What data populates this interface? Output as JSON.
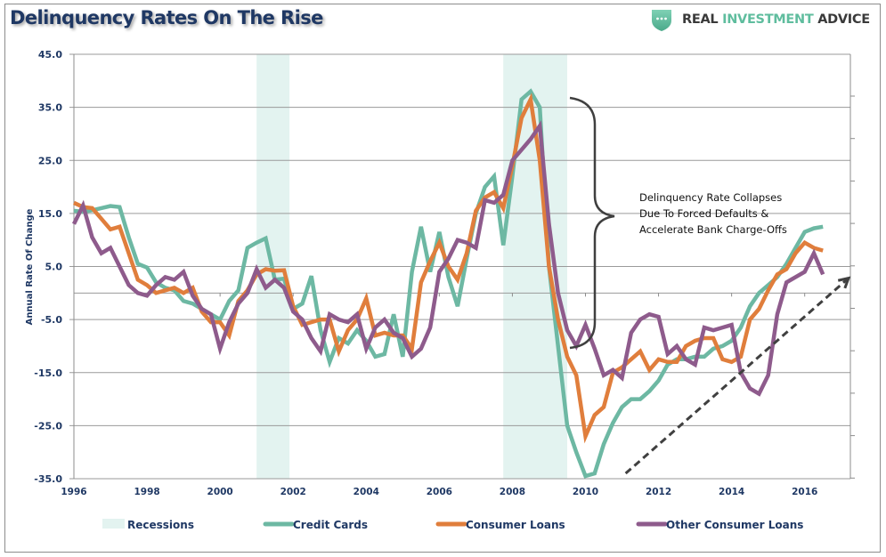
{
  "header": {
    "title": "Delinquency Rates On The Rise",
    "brand": {
      "word1": "REAL",
      "word2": "INVESTMENT",
      "word3": "ADVICE",
      "icon": "shield-dots-icon"
    }
  },
  "colors": {
    "credit_cards": "#6db8a3",
    "consumer_loans": "#e07e3c",
    "other_consumer_loans": "#8e5b8c",
    "recessions": "#e3f3f0",
    "title": "#1f3864",
    "annotation": "#3f3f3f"
  },
  "annotation": {
    "lines": [
      "Delinquency Rate Collapses",
      "Due To Forced Defaults &",
      "Accelerate Bank Charge-Offs"
    ]
  },
  "chart_data": {
    "type": "line",
    "title": "Delinquency Rates On The Rise",
    "xlabel": "",
    "ylabel": "Annual Rate  Of Change",
    "ylim": [
      -35,
      45
    ],
    "xlim": [
      1996,
      2017.25
    ],
    "yticks": [
      -35.0,
      -25.0,
      -15.0,
      -5.0,
      5.0,
      15.0,
      25.0,
      35.0,
      45.0
    ],
    "ytick_labels": [
      "-35.0",
      "-25.0",
      "-15.0",
      "-5.0",
      "5.0",
      "15.0",
      "25.0",
      "35.0",
      "45.0"
    ],
    "xtick_labels": [
      "1996",
      "1998",
      "2000",
      "2002",
      "2004",
      "2006",
      "2008",
      "2010",
      "2012",
      "2014",
      "2016"
    ],
    "xticks": [
      1996,
      1998,
      2000,
      2002,
      2004,
      2006,
      2008,
      2010,
      2012,
      2014,
      2016
    ],
    "grid": "horizontal",
    "legend_position": "bottom",
    "recessions": [
      {
        "start": 2001.0,
        "end": 2001.9
      },
      {
        "start": 2007.75,
        "end": 2009.5
      }
    ],
    "x_start": 1996.0,
    "x_step": 0.25,
    "series": [
      {
        "name": "Credit Cards",
        "values": [
          15.5,
          15.3,
          15.6,
          16.0,
          16.4,
          16.2,
          10.5,
          5.5,
          4.8,
          2.0,
          1.0,
          0.5,
          -1.5,
          -2.0,
          -3.0,
          -4.0,
          -5.0,
          -1.5,
          0.5,
          8.5,
          9.5,
          10.3,
          2.5,
          2.7,
          -3.0,
          -2.0,
          3.2,
          -7.0,
          -13.0,
          -8.5,
          -9.5,
          -7.0,
          -9.0,
          -12.0,
          -11.5,
          -4.0,
          -12.0,
          4.0,
          12.5,
          4.0,
          11.5,
          3.0,
          -2.5,
          6.5,
          15.0,
          20.0,
          22.0,
          9.0,
          22.0,
          36.5,
          38.0,
          35.0,
          5.0,
          -10.0,
          -25.0,
          -30.0,
          -34.5,
          -34.0,
          -28.5,
          -24.5,
          -21.5,
          -20.0,
          -20.0,
          -18.5,
          -16.5,
          -13.5,
          -12.5,
          -12.5,
          -12.0,
          -12.0,
          -10.5,
          -10.0,
          -9.0,
          -6.5,
          -2.5,
          0.0,
          1.5,
          3.0,
          5.5,
          8.5,
          11.5,
          12.2,
          12.5
        ]
      },
      {
        "name": "Consumer Loans",
        "values": [
          17.0,
          16.2,
          16.0,
          14.0,
          12.0,
          12.5,
          7.5,
          2.5,
          1.5,
          0.0,
          0.5,
          1.0,
          0.0,
          1.0,
          -3.5,
          -5.5,
          -5.5,
          -8.0,
          -1.5,
          0.5,
          3.5,
          4.5,
          4.2,
          4.3,
          -2.5,
          -6.0,
          -5.5,
          -5.0,
          -5.0,
          -11.0,
          -7.0,
          -5.0,
          -1.0,
          -8.0,
          -7.5,
          -8.0,
          -8.0,
          -10.5,
          2.0,
          6.0,
          9.5,
          5.0,
          2.5,
          7.5,
          15.5,
          18.0,
          19.0,
          16.0,
          24.0,
          33.0,
          36.5,
          25.0,
          5.0,
          -5.0,
          -12.0,
          -15.5,
          -27.0,
          -23.0,
          -21.5,
          -15.0,
          -14.0,
          -12.5,
          -11.0,
          -14.5,
          -12.5,
          -13.0,
          -13.0,
          -10.0,
          -9.0,
          -8.5,
          -8.5,
          -12.5,
          -13.0,
          -12.0,
          -5.0,
          -3.0,
          0.5,
          3.5,
          4.5,
          7.5,
          9.5,
          8.5,
          8.0
        ]
      },
      {
        "name": "Other Consumer Loans",
        "values": [
          13.0,
          16.5,
          10.5,
          7.5,
          8.5,
          5.0,
          1.5,
          0.0,
          -0.5,
          1.5,
          3.0,
          2.5,
          4.0,
          -0.5,
          -3.0,
          -4.0,
          -10.5,
          -5.5,
          -2.0,
          0.0,
          4.5,
          1.0,
          2.5,
          1.0,
          -3.5,
          -5.0,
          -8.5,
          -11.0,
          -4.0,
          -5.0,
          -5.5,
          -4.0,
          -10.5,
          -6.5,
          -5.0,
          -7.5,
          -8.5,
          -12.0,
          -10.5,
          -6.5,
          4.0,
          6.5,
          10.0,
          9.5,
          8.5,
          17.5,
          17.0,
          18.5,
          25.0,
          27.0,
          29.0,
          31.5,
          13.0,
          0.0,
          -7.0,
          -10.0,
          -6.0,
          -10.5,
          -15.5,
          -14.5,
          -16.0,
          -7.5,
          -5.0,
          -4.0,
          -4.5,
          -11.5,
          -10.0,
          -12.5,
          -13.5,
          -6.5,
          -7.0,
          -6.5,
          -6.0,
          -15.0,
          -18.0,
          -19.0,
          -15.5,
          -4.0,
          2.0,
          3.0,
          4.0,
          7.5,
          3.5
        ]
      }
    ],
    "arrow": {
      "from": [
        2011.1,
        -34.0
      ],
      "to": [
        2017.2,
        2.8
      ],
      "style": "dashed"
    }
  },
  "legend": {
    "items": [
      {
        "label": "Recessions",
        "kind": "box",
        "color_key": "recessions"
      },
      {
        "label": "Credit Cards",
        "kind": "line",
        "color_key": "credit_cards"
      },
      {
        "label": "Consumer Loans",
        "kind": "line",
        "color_key": "consumer_loans"
      },
      {
        "label": "Other Consumer Loans",
        "kind": "line",
        "color_key": "other_consumer_loans"
      }
    ]
  }
}
